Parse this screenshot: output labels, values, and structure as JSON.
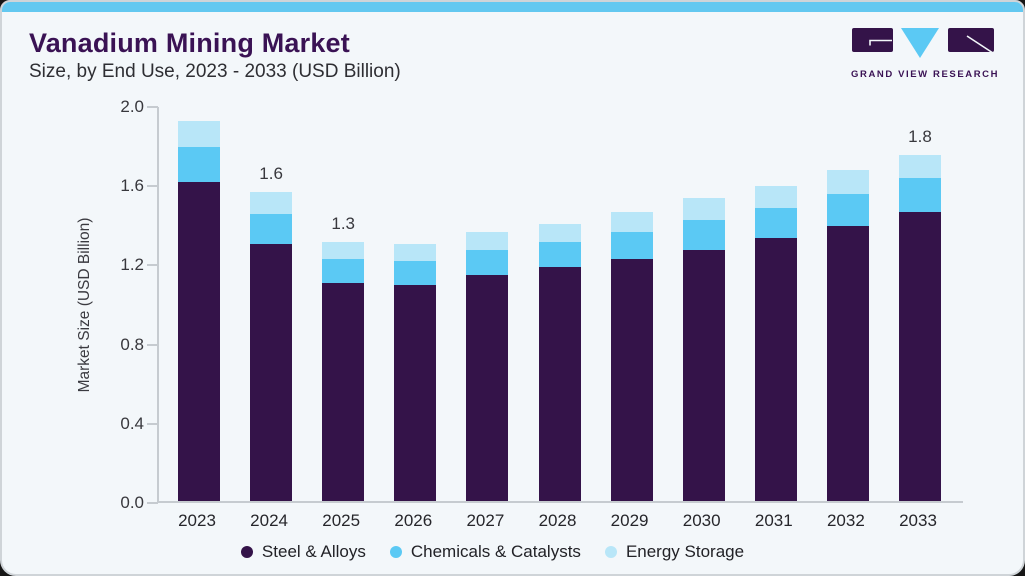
{
  "header": {
    "title": "Vanadium Mining Market",
    "subtitle": "Size, by End Use, 2023 - 2033 (USD Billion)"
  },
  "logo": {
    "brand": "GRAND VIEW RESEARCH"
  },
  "colors": {
    "accent_strip": "#63c8f0",
    "title_purple": "#3a1254",
    "card_bg": "#f3f7fa",
    "axis_gray": "#c6cbd0",
    "steel": "#341349",
    "chemicals": "#5bc9f4",
    "energy": "#b8e6f8"
  },
  "chart_data": {
    "type": "bar",
    "stacked": true,
    "title": "Vanadium Mining Market Size, by End Use, 2023 - 2033 (USD Billion)",
    "xlabel": "",
    "ylabel": "Market Size (USD Billion)",
    "ylim": [
      0,
      2.0
    ],
    "yticks": [
      0.0,
      0.4,
      0.8,
      1.2,
      1.6,
      2.0
    ],
    "grid": false,
    "legend_position": "bottom",
    "categories": [
      "2023",
      "2024",
      "2025",
      "2026",
      "2027",
      "2028",
      "2029",
      "2030",
      "2031",
      "2032",
      "2033"
    ],
    "series": [
      {
        "name": "Steel & Alloys",
        "color": "#341349",
        "values": [
          1.61,
          1.3,
          1.1,
          1.09,
          1.14,
          1.18,
          1.22,
          1.27,
          1.33,
          1.39,
          1.46
        ]
      },
      {
        "name": "Chemicals & Catalysts",
        "color": "#5bc9f4",
        "values": [
          0.18,
          0.15,
          0.12,
          0.12,
          0.13,
          0.13,
          0.14,
          0.15,
          0.15,
          0.16,
          0.17
        ]
      },
      {
        "name": "Energy Storage",
        "color": "#b8e6f8",
        "values": [
          0.13,
          0.11,
          0.09,
          0.09,
          0.09,
          0.09,
          0.1,
          0.11,
          0.11,
          0.12,
          0.12
        ]
      }
    ],
    "total_labels": [
      "",
      "1.6",
      "1.3",
      "",
      "",
      "",
      "",
      "",
      "",
      "",
      "1.8"
    ]
  }
}
